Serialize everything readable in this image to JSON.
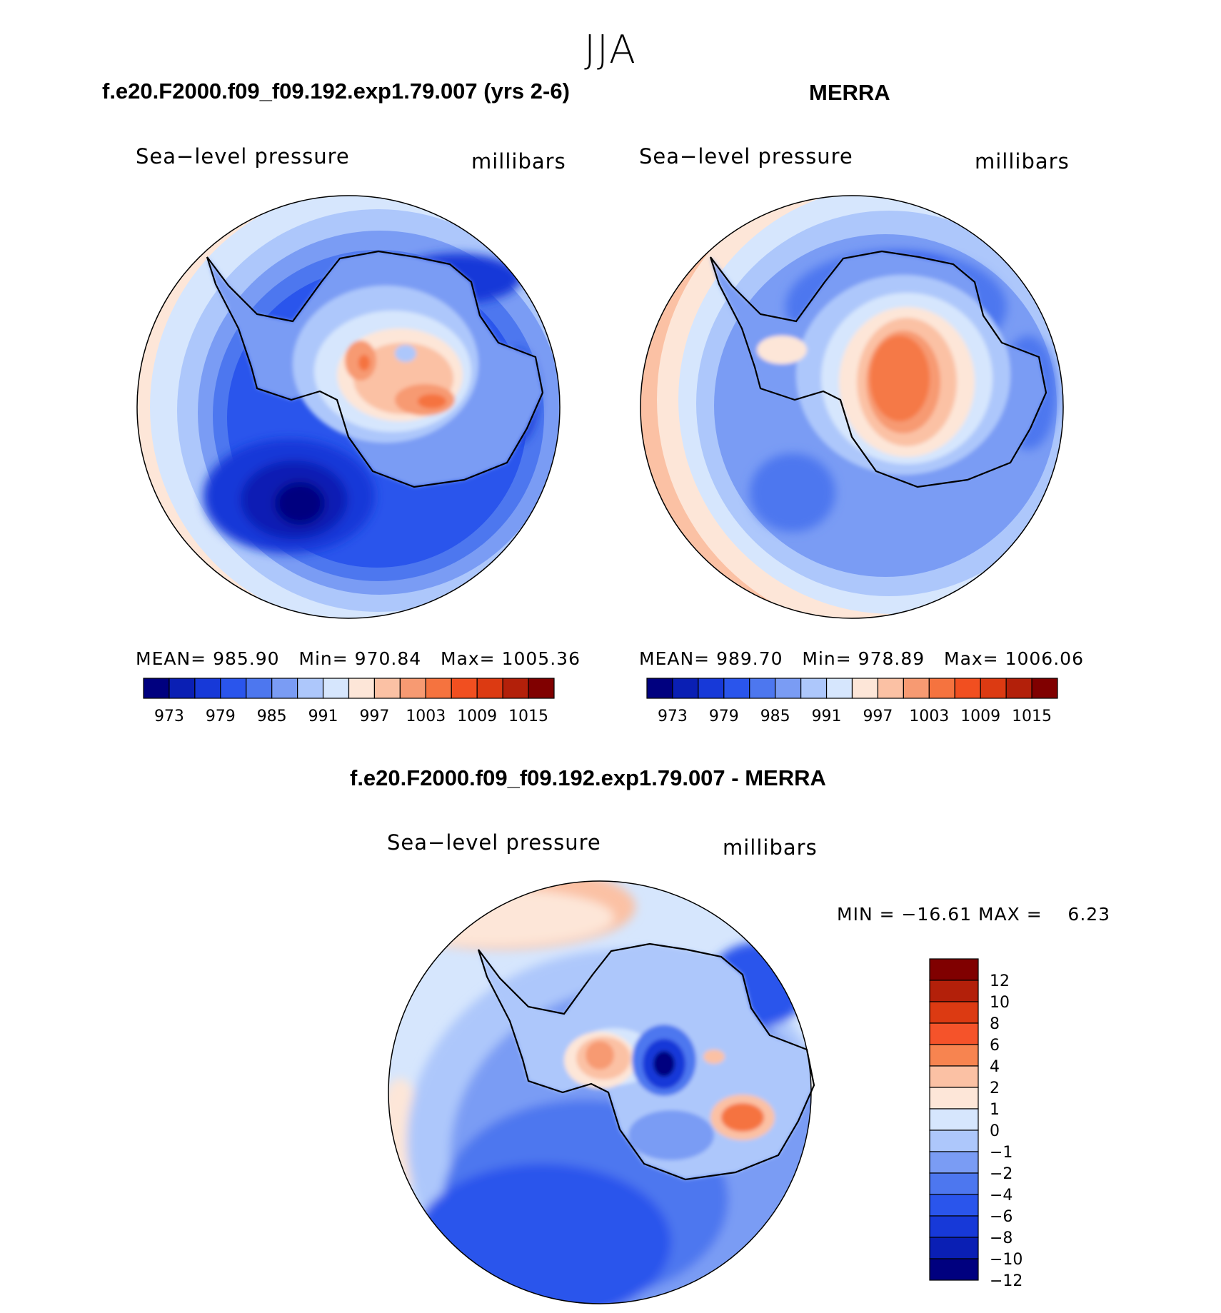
{
  "season": "JJA",
  "panels": [
    {
      "title": "f.e20.F2000.f09_f09.192.exp1.79.007 (yrs 2-6)",
      "variable": "Sea−level pressure",
      "units": "millibars",
      "stats": {
        "mean_label": "MEAN=",
        "mean": "985.90",
        "min_label": "Min=",
        "min": "970.84",
        "max_label": "Max=",
        "max": "1005.36"
      },
      "colorbar_labels": [
        "973",
        "979",
        "985",
        "991",
        "997",
        "1003",
        "1009",
        "1015"
      ]
    },
    {
      "title": "MERRA",
      "variable": "Sea−level pressure",
      "units": "millibars",
      "stats": {
        "mean_label": "MEAN=",
        "mean": "989.70",
        "min_label": "Min=",
        "min": "978.89",
        "max_label": "Max=",
        "max": "1006.06"
      },
      "colorbar_labels": [
        "973",
        "979",
        "985",
        "991",
        "997",
        "1003",
        "1009",
        "1015"
      ]
    }
  ],
  "diff_panel": {
    "title": "f.e20.F2000.f09_f09.192.exp1.79.007 - MERRA",
    "variable": "Sea−level pressure",
    "units": "millibars",
    "stats_text": "MIN = −16.61 MAX =    6.23",
    "colorbar_labels": [
      "12",
      "10",
      "8",
      "6",
      "4",
      "2",
      "1",
      "0",
      "−1",
      "−2",
      "−4",
      "−6",
      "−8",
      "−10",
      "−12"
    ]
  },
  "colors": {
    "mean_scale": [
      "#00007f",
      "#0a1fb4",
      "#1739d8",
      "#2a55ec",
      "#4d77ef",
      "#7a9cf4",
      "#adc7fb",
      "#d6e6fd",
      "#fde6d8",
      "#fbc1a4",
      "#f79a72",
      "#f5733f",
      "#f14f20",
      "#dc3a12",
      "#b3200a",
      "#800000"
    ],
    "diff_scale": [
      "#800000",
      "#b3200a",
      "#dc3a12",
      "#f5532a",
      "#f78450",
      "#fbc1a4",
      "#fde6d8",
      "#d6e6fd",
      "#adc7fb",
      "#7a9cf4",
      "#4d77ef",
      "#2a55ec",
      "#1739d8",
      "#0a1fb4",
      "#00007f"
    ],
    "coastline": "#000000"
  }
}
